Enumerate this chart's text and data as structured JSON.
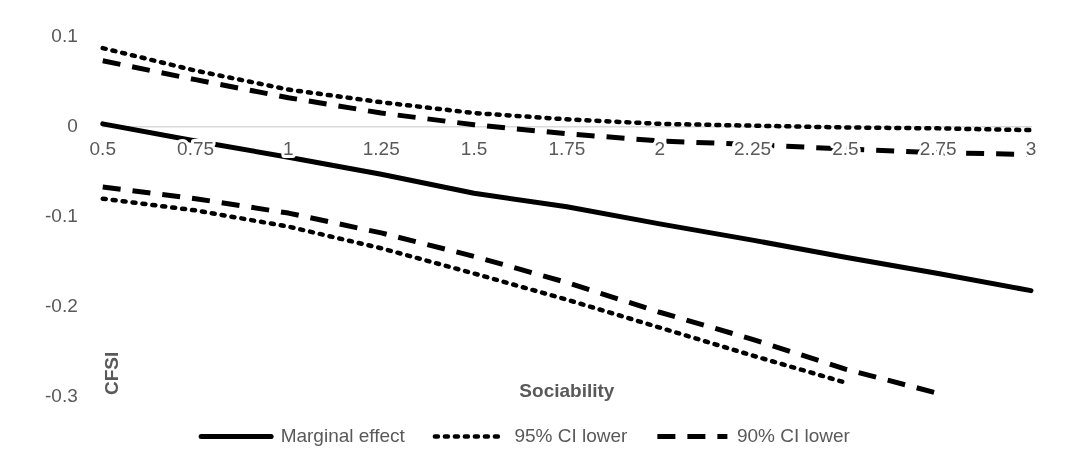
{
  "chart_data": {
    "type": "line",
    "xlabel": "Sociability",
    "ylabel": "CFSI",
    "categories": [
      "0.5",
      "0.75",
      "1",
      "1.25",
      "1.5",
      "1.75",
      "2",
      "2.25",
      "2.5",
      "2.75",
      "3"
    ],
    "series": [
      {
        "name": "Marginal effect",
        "color": "#000000",
        "line_style": "solid",
        "values": [
          0.003,
          -0.016,
          -0.034,
          -0.053,
          -0.074,
          -0.089,
          -0.108,
          -0.126,
          -0.145,
          -0.163,
          -0.182
        ]
      },
      {
        "name": "95% CI lower",
        "color": "#000000",
        "line_style": "dotted",
        "values": [
          -0.08,
          -0.093,
          -0.111,
          -0.135,
          -0.163,
          -0.192,
          -0.223,
          -0.254,
          -0.284,
          null,
          null
        ]
      },
      {
        "name": "90% CI lower",
        "color": "#000000",
        "line_style": "dashed",
        "values": [
          -0.067,
          -0.08,
          -0.096,
          -0.118,
          -0.144,
          -0.173,
          -0.206,
          -0.236,
          -0.269,
          -0.296,
          null
        ]
      },
      {
        "color": "#000000",
        "line_style": "dotted",
        "values": [
          0.087,
          0.062,
          0.041,
          0.027,
          0.015,
          0.008,
          0.003,
          0.001,
          -0.001,
          -0.002,
          -0.004
        ]
      },
      {
        "color": "#000000",
        "line_style": "dashed",
        "values": [
          0.073,
          0.052,
          0.032,
          0.015,
          0.002,
          -0.008,
          -0.016,
          -0.02,
          -0.025,
          -0.029,
          -0.031
        ]
      }
    ],
    "ylim": [
      -0.3,
      0.1
    ],
    "yticks": [
      -0.3,
      -0.2,
      -0.1,
      0,
      0.1
    ],
    "grid": false,
    "legend": "bottom",
    "marker": "none"
  }
}
